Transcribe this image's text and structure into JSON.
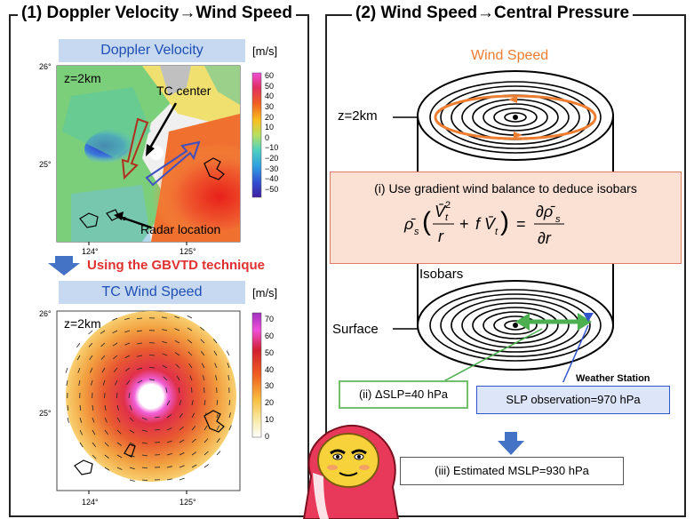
{
  "left_panel": {
    "title": "(1) Doppler Velocity→Wind Speed",
    "top_map": {
      "banner": "Doppler Velocity",
      "unit": "[m/s]",
      "height_label": "z=2km",
      "tc_center_label": "TC center",
      "radar_label": "Radar location",
      "lat_ticks": [
        "26°",
        "25°"
      ],
      "lon_ticks": [
        "124°",
        "125°"
      ],
      "colorbar_ticks": [
        "60",
        "50",
        "40",
        "30",
        "20",
        "10",
        "0",
        "−10",
        "−20",
        "−30",
        "−40",
        "−50"
      ]
    },
    "technique_label": "Using the GBVTD technique",
    "bottom_map": {
      "banner": "TC Wind Speed",
      "unit": "[m/s]",
      "height_label": "z=2km",
      "lat_ticks": [
        "26°",
        "25°"
      ],
      "lon_ticks": [
        "124°",
        "125°"
      ],
      "colorbar_ticks": [
        "70",
        "60",
        "50",
        "40",
        "30",
        "20",
        "10",
        "0"
      ]
    }
  },
  "right_panel": {
    "title": "(2) Wind Speed→Central Pressure",
    "wind_speed_label": "Wind Speed",
    "top_level_label": "z=2km",
    "step1_text": "(i) Use gradient wind balance to deduce isobars",
    "isobars_label": "Isobars",
    "surface_label": "Surface",
    "weather_station_label": "Weather Station",
    "step2_text": "(ii) ΔSLP=40 hPa",
    "slp_obs_text": "SLP observation=970 hPa",
    "step3_text": "(iii) Estimated MSLP=930 hPa"
  },
  "colors": {
    "banner_bg": "#c6d9f1",
    "banner_text": "#1f4fb4",
    "technique_text": "#e03030",
    "wind_orange": "#ed7d31",
    "formula_box_bg": "#fbe0d4",
    "formula_box_border": "#e07a6a",
    "step2_border": "#70c070",
    "slp_box_bg": "#dce6f8",
    "slp_box_border": "#3355cc",
    "arrow_blue": "#4472c4",
    "green_arrow": "#4caf50"
  }
}
